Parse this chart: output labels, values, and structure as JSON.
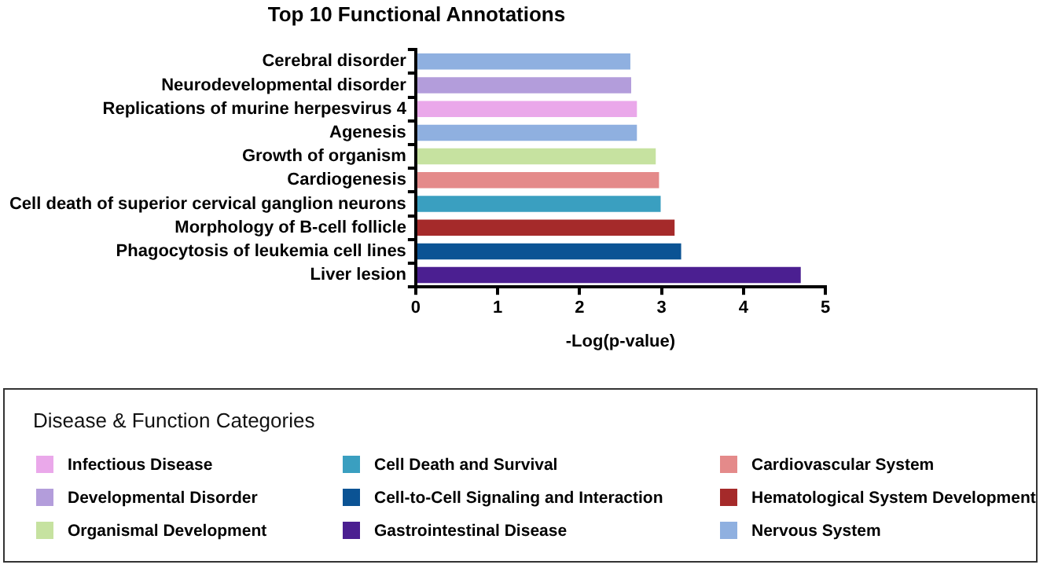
{
  "chart_data": {
    "type": "bar",
    "orientation": "horizontal",
    "stacked": true,
    "title": "Top 10 Functional Annotations",
    "xlabel": "-Log(p-value)",
    "legend_title": "Disease & Function Categories",
    "legend": "bottom",
    "grid": false,
    "categories": [
      "Cerebral disorder",
      "Neurodevelopmental disorder",
      "Replications of murine herpesvirus 4",
      "Agenesis",
      "Growth of organism",
      "Cardiogenesis",
      "Cell death of superior cervical ganglion neurons",
      "Morphology of B-cell follicle",
      "Phagocytosis of leukemia cell lines",
      "Liver lesion"
    ],
    "xlim": [
      0,
      5
    ],
    "xticks": [
      0,
      1,
      2,
      3,
      4,
      5
    ],
    "series": [
      {
        "name": "Infectious Disease",
        "color": "#eaa8ea",
        "values": [
          null,
          null,
          2.7,
          null,
          null,
          null,
          null,
          null,
          null,
          null
        ]
      },
      {
        "name": "Developmental Disorder",
        "color": "#b39ddb",
        "values": [
          null,
          2.63,
          null,
          null,
          null,
          null,
          null,
          null,
          null,
          null
        ]
      },
      {
        "name": "Organismal Development",
        "color": "#c6e2a0",
        "values": [
          null,
          null,
          null,
          null,
          2.93,
          null,
          null,
          null,
          null,
          null
        ]
      },
      {
        "name": "Cell Death and Survival",
        "color": "#3a9fc0",
        "values": [
          null,
          null,
          null,
          null,
          null,
          null,
          2.99,
          null,
          null,
          null
        ]
      },
      {
        "name": "Cell-to-Cell Signaling and Interaction",
        "color": "#0b5394",
        "values": [
          null,
          null,
          null,
          null,
          null,
          null,
          null,
          null,
          3.24,
          null
        ]
      },
      {
        "name": "Gastrointestinal Disease",
        "color": "#4b1f91",
        "values": [
          null,
          null,
          null,
          null,
          null,
          null,
          null,
          null,
          null,
          4.7
        ]
      },
      {
        "name": "Cardiovascular System",
        "color": "#e48a8a",
        "values": [
          null,
          null,
          null,
          null,
          null,
          2.97,
          null,
          null,
          null,
          null
        ]
      },
      {
        "name": "Hematological System Development",
        "color": "#a52a2a",
        "values": [
          null,
          null,
          null,
          null,
          null,
          null,
          null,
          3.16,
          null,
          null
        ]
      },
      {
        "name": "Nervous System",
        "color": "#8fb0e0",
        "values": [
          2.62,
          null,
          null,
          2.7,
          null,
          null,
          null,
          null,
          null,
          null
        ]
      }
    ]
  }
}
